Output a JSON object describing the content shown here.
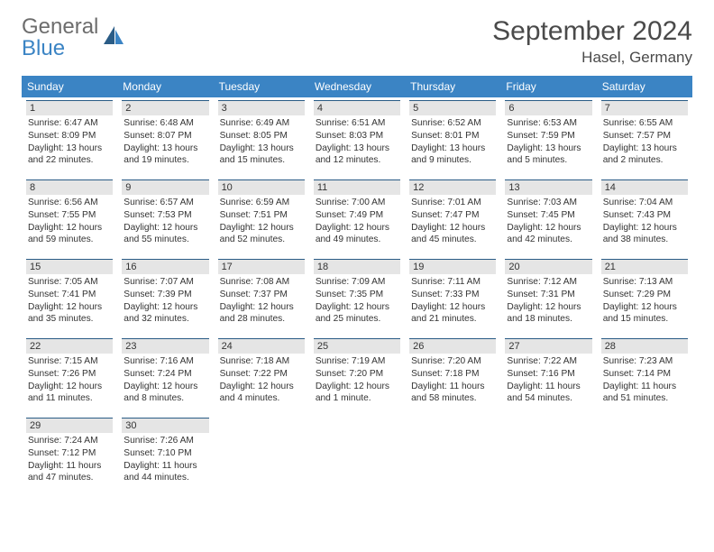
{
  "logo": {
    "line1": "General",
    "line2": "Blue"
  },
  "title": "September 2024",
  "location": "Hasel, Germany",
  "colors": {
    "header_bg": "#3b84c4",
    "header_text": "#ffffff",
    "daybar_bg": "#e5e5e5",
    "daybar_border": "#2a5c86",
    "body_text": "#333333",
    "title_text": "#4a4a4a",
    "logo_gray": "#6d6d6d",
    "logo_blue": "#3b84c4",
    "page_bg": "#ffffff"
  },
  "weekdays": [
    "Sunday",
    "Monday",
    "Tuesday",
    "Wednesday",
    "Thursday",
    "Friday",
    "Saturday"
  ],
  "weeks": [
    [
      {
        "n": "1",
        "sr": "Sunrise: 6:47 AM",
        "ss": "Sunset: 8:09 PM",
        "dl": "Daylight: 13 hours and 22 minutes."
      },
      {
        "n": "2",
        "sr": "Sunrise: 6:48 AM",
        "ss": "Sunset: 8:07 PM",
        "dl": "Daylight: 13 hours and 19 minutes."
      },
      {
        "n": "3",
        "sr": "Sunrise: 6:49 AM",
        "ss": "Sunset: 8:05 PM",
        "dl": "Daylight: 13 hours and 15 minutes."
      },
      {
        "n": "4",
        "sr": "Sunrise: 6:51 AM",
        "ss": "Sunset: 8:03 PM",
        "dl": "Daylight: 13 hours and 12 minutes."
      },
      {
        "n": "5",
        "sr": "Sunrise: 6:52 AM",
        "ss": "Sunset: 8:01 PM",
        "dl": "Daylight: 13 hours and 9 minutes."
      },
      {
        "n": "6",
        "sr": "Sunrise: 6:53 AM",
        "ss": "Sunset: 7:59 PM",
        "dl": "Daylight: 13 hours and 5 minutes."
      },
      {
        "n": "7",
        "sr": "Sunrise: 6:55 AM",
        "ss": "Sunset: 7:57 PM",
        "dl": "Daylight: 13 hours and 2 minutes."
      }
    ],
    [
      {
        "n": "8",
        "sr": "Sunrise: 6:56 AM",
        "ss": "Sunset: 7:55 PM",
        "dl": "Daylight: 12 hours and 59 minutes."
      },
      {
        "n": "9",
        "sr": "Sunrise: 6:57 AM",
        "ss": "Sunset: 7:53 PM",
        "dl": "Daylight: 12 hours and 55 minutes."
      },
      {
        "n": "10",
        "sr": "Sunrise: 6:59 AM",
        "ss": "Sunset: 7:51 PM",
        "dl": "Daylight: 12 hours and 52 minutes."
      },
      {
        "n": "11",
        "sr": "Sunrise: 7:00 AM",
        "ss": "Sunset: 7:49 PM",
        "dl": "Daylight: 12 hours and 49 minutes."
      },
      {
        "n": "12",
        "sr": "Sunrise: 7:01 AM",
        "ss": "Sunset: 7:47 PM",
        "dl": "Daylight: 12 hours and 45 minutes."
      },
      {
        "n": "13",
        "sr": "Sunrise: 7:03 AM",
        "ss": "Sunset: 7:45 PM",
        "dl": "Daylight: 12 hours and 42 minutes."
      },
      {
        "n": "14",
        "sr": "Sunrise: 7:04 AM",
        "ss": "Sunset: 7:43 PM",
        "dl": "Daylight: 12 hours and 38 minutes."
      }
    ],
    [
      {
        "n": "15",
        "sr": "Sunrise: 7:05 AM",
        "ss": "Sunset: 7:41 PM",
        "dl": "Daylight: 12 hours and 35 minutes."
      },
      {
        "n": "16",
        "sr": "Sunrise: 7:07 AM",
        "ss": "Sunset: 7:39 PM",
        "dl": "Daylight: 12 hours and 32 minutes."
      },
      {
        "n": "17",
        "sr": "Sunrise: 7:08 AM",
        "ss": "Sunset: 7:37 PM",
        "dl": "Daylight: 12 hours and 28 minutes."
      },
      {
        "n": "18",
        "sr": "Sunrise: 7:09 AM",
        "ss": "Sunset: 7:35 PM",
        "dl": "Daylight: 12 hours and 25 minutes."
      },
      {
        "n": "19",
        "sr": "Sunrise: 7:11 AM",
        "ss": "Sunset: 7:33 PM",
        "dl": "Daylight: 12 hours and 21 minutes."
      },
      {
        "n": "20",
        "sr": "Sunrise: 7:12 AM",
        "ss": "Sunset: 7:31 PM",
        "dl": "Daylight: 12 hours and 18 minutes."
      },
      {
        "n": "21",
        "sr": "Sunrise: 7:13 AM",
        "ss": "Sunset: 7:29 PM",
        "dl": "Daylight: 12 hours and 15 minutes."
      }
    ],
    [
      {
        "n": "22",
        "sr": "Sunrise: 7:15 AM",
        "ss": "Sunset: 7:26 PM",
        "dl": "Daylight: 12 hours and 11 minutes."
      },
      {
        "n": "23",
        "sr": "Sunrise: 7:16 AM",
        "ss": "Sunset: 7:24 PM",
        "dl": "Daylight: 12 hours and 8 minutes."
      },
      {
        "n": "24",
        "sr": "Sunrise: 7:18 AM",
        "ss": "Sunset: 7:22 PM",
        "dl": "Daylight: 12 hours and 4 minutes."
      },
      {
        "n": "25",
        "sr": "Sunrise: 7:19 AM",
        "ss": "Sunset: 7:20 PM",
        "dl": "Daylight: 12 hours and 1 minute."
      },
      {
        "n": "26",
        "sr": "Sunrise: 7:20 AM",
        "ss": "Sunset: 7:18 PM",
        "dl": "Daylight: 11 hours and 58 minutes."
      },
      {
        "n": "27",
        "sr": "Sunrise: 7:22 AM",
        "ss": "Sunset: 7:16 PM",
        "dl": "Daylight: 11 hours and 54 minutes."
      },
      {
        "n": "28",
        "sr": "Sunrise: 7:23 AM",
        "ss": "Sunset: 7:14 PM",
        "dl": "Daylight: 11 hours and 51 minutes."
      }
    ],
    [
      {
        "n": "29",
        "sr": "Sunrise: 7:24 AM",
        "ss": "Sunset: 7:12 PM",
        "dl": "Daylight: 11 hours and 47 minutes."
      },
      {
        "n": "30",
        "sr": "Sunrise: 7:26 AM",
        "ss": "Sunset: 7:10 PM",
        "dl": "Daylight: 11 hours and 44 minutes."
      },
      null,
      null,
      null,
      null,
      null
    ]
  ]
}
